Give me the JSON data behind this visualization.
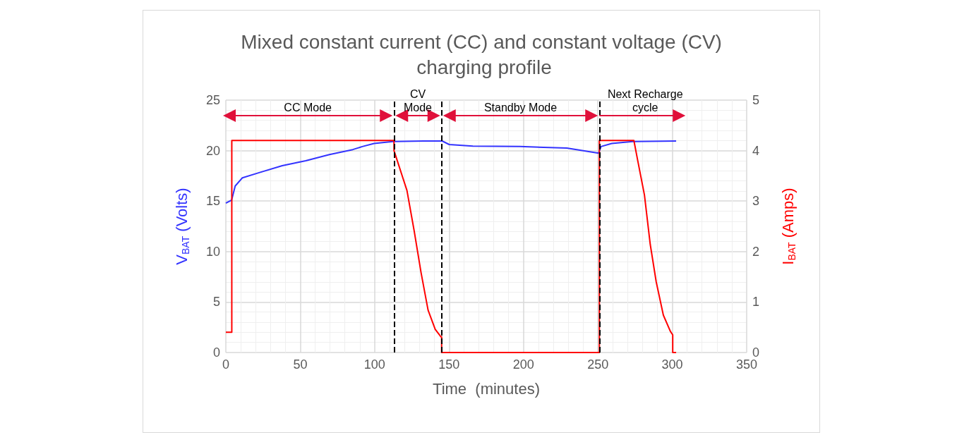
{
  "chart_data": {
    "type": "line",
    "title": "Mixed constant current (CC) and constant voltage (CV) charging profile",
    "xlabel": "Time  (minutes)",
    "ylabel": "V$_{BAT}$ (Volts)",
    "y2label": "I$_{BAT}$ (Amps)",
    "xlim": [
      0,
      350
    ],
    "xticks": [
      0,
      50,
      100,
      150,
      200,
      250,
      300,
      350
    ],
    "ylim": [
      0,
      25
    ],
    "yticks": [
      0,
      5,
      10,
      15,
      20,
      25
    ],
    "y2lim": [
      0,
      5
    ],
    "y2ticks": [
      0,
      1,
      2,
      3,
      4,
      5
    ],
    "grid": true,
    "marker": "none",
    "series": [
      {
        "color": "#3333ff",
        "x": [
          0,
          3.9,
          6.3,
          11.1,
          22,
          37.9,
          53.7,
          69.6,
          85.3,
          91.7,
          99.6,
          112.2,
          132.8,
          145.4,
          150.1,
          166,
          197.5,
          229.1,
          250.5,
          252.1,
          259.3,
          273.3,
          302.6
        ],
        "values": [
          14.8,
          15.1,
          16.5,
          17.3,
          17.8,
          18.5,
          19.0,
          19.6,
          20.1,
          20.4,
          20.7,
          20.9,
          20.95,
          20.95,
          20.6,
          20.45,
          20.4,
          20.25,
          19.75,
          20.4,
          20.7,
          20.9,
          20.95
        ]
      },
      {
        "color": "#ff0000",
        "axis": "y2",
        "x": [
          0,
          4,
          4,
          113,
          113,
          121.7,
          126.5,
          131.2,
          135.9,
          140.7,
          144.6,
          145,
          145,
          251,
          251,
          274.2,
          277,
          281.3,
          285.2,
          289.2,
          294,
          298.7,
          300.3,
          300.3,
          302.6
        ],
        "values": [
          0.4,
          0.4,
          4.2,
          4.2,
          4.0,
          3.21,
          2.42,
          1.58,
          0.84,
          0.46,
          0.31,
          0.31,
          0,
          0,
          4.2,
          4.2,
          3.77,
          3.12,
          2.14,
          1.4,
          0.74,
          0.42,
          0.35,
          0,
          0
        ]
      }
    ],
    "ref_lines": [
      {
        "axis": "x",
        "value": 113,
        "color": "#000000",
        "line_style": "dashed"
      },
      {
        "axis": "x",
        "value": 145,
        "color": "#000000",
        "line_style": "dashed"
      },
      {
        "axis": "x",
        "value": 251,
        "color": "#000000",
        "line_style": "dashed"
      }
    ],
    "annotations": [
      "CC Mode",
      "CV\nMode",
      "Standby Mode",
      "Next Recharge\ncycle"
    ]
  }
}
